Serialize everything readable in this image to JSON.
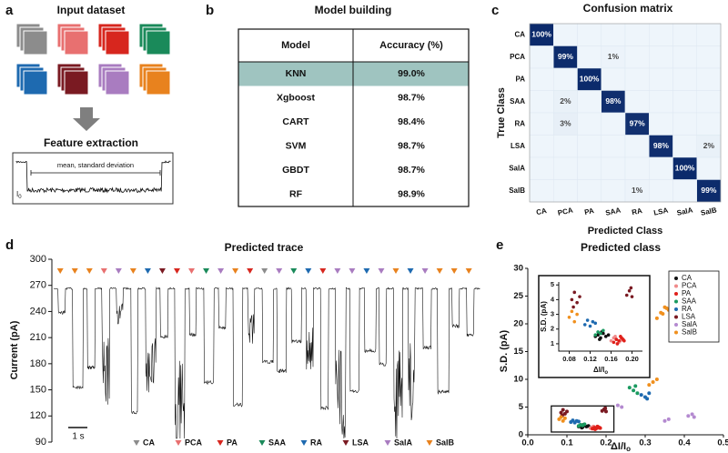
{
  "panel_a": {
    "label": "a",
    "title": "Input  dataset",
    "subtitle": "Feature extraction",
    "annotation": "mean, standard deviation",
    "baseline_label": {
      "text": "I",
      "sub": "0"
    },
    "colors": [
      "#8c8c8c",
      "#e87070",
      "#d7261e",
      "#1a8a5a",
      "#1e6ab0",
      "#7a1a22",
      "#a97cc0",
      "#e8821e"
    ]
  },
  "table": {
    "label": "b",
    "title": "Model building",
    "header": [
      "Model",
      "Accuracy (%)"
    ],
    "rows": [
      [
        "KNN",
        "99.0%"
      ],
      [
        "Xgboost",
        "98.7%"
      ],
      [
        "CART",
        "98.4%"
      ],
      [
        "SVM",
        "98.7%"
      ],
      [
        "GBDT",
        "98.7%"
      ],
      [
        "RF",
        "98.9%"
      ]
    ],
    "highlight_row": 0,
    "highlight_color": "#9fc4c0"
  },
  "chart_data": [
    {
      "type": "heatmap",
      "label": "c",
      "title": "Confusion matrix",
      "xlabel": "Predicted Class",
      "ylabel": "True Class",
      "categories": [
        "CA",
        "PCA",
        "PA",
        "SAA",
        "RA",
        "LSA",
        "SalA",
        "SalB"
      ],
      "low_color": "#eef5fb",
      "high_color": "#0b2a6b",
      "values": [
        [
          100,
          0,
          0,
          0,
          0,
          0,
          0,
          0
        ],
        [
          0,
          99,
          0,
          1,
          0,
          0,
          0,
          0
        ],
        [
          0,
          0,
          100,
          0,
          0,
          0,
          0,
          0
        ],
        [
          0,
          2,
          0,
          98,
          0,
          0,
          0,
          0
        ],
        [
          0,
          3,
          0,
          0,
          97,
          0,
          0,
          0
        ],
        [
          0,
          0,
          0,
          0,
          0,
          98,
          0,
          2
        ],
        [
          0,
          0,
          0,
          0,
          0,
          0,
          100,
          0
        ],
        [
          0,
          0,
          0,
          0,
          1,
          0,
          0,
          99
        ]
      ],
      "value_labels": [
        [
          "100%",
          null,
          null,
          null,
          null,
          null,
          null,
          null
        ],
        [
          null,
          "99%",
          null,
          "1%",
          null,
          null,
          null,
          null
        ],
        [
          null,
          null,
          "100%",
          null,
          null,
          null,
          null,
          null
        ],
        [
          null,
          "2%",
          null,
          "98%",
          null,
          null,
          null,
          null
        ],
        [
          null,
          "3%",
          null,
          null,
          "97%",
          null,
          null,
          null
        ],
        [
          null,
          null,
          null,
          null,
          null,
          "98%",
          null,
          "2%"
        ],
        [
          null,
          null,
          null,
          null,
          null,
          null,
          "100%",
          null
        ],
        [
          null,
          null,
          null,
          null,
          "1%",
          null,
          null,
          "99%"
        ]
      ]
    },
    {
      "type": "trace",
      "label": "d",
      "title": "Predicted trace",
      "ylabel": "Current (pA)",
      "ylim": [
        90,
        300
      ],
      "yticks": [
        90,
        120,
        150,
        180,
        210,
        240,
        270,
        300
      ],
      "scale_bar": "1 s",
      "legend": [
        {
          "name": "CA",
          "color": "#8c8c8c"
        },
        {
          "name": "PCA",
          "color": "#e87070"
        },
        {
          "name": "PA",
          "color": "#d7261e"
        },
        {
          "name": "SAA",
          "color": "#1a8a5a"
        },
        {
          "name": "RA",
          "color": "#1e6ab0"
        },
        {
          "name": "LSA",
          "color": "#7a1a22"
        },
        {
          "name": "SalA",
          "color": "#a97cc0"
        },
        {
          "name": "SalB",
          "color": "#e8821e"
        }
      ],
      "events": [
        "SalB",
        "SalB",
        "SalB",
        "PCA",
        "SalA",
        "SalB",
        "RA",
        "LSA",
        "PA",
        "PCA",
        "SAA",
        "SalA",
        "SalB",
        "PA",
        "CA",
        "SalA",
        "SAA",
        "RA",
        "PA",
        "SalA",
        "SalA",
        "RA",
        "SalA",
        "SalB",
        "RA",
        "SalA",
        "SalB",
        "SalB",
        "SalB"
      ]
    },
    {
      "type": "scatter",
      "label": "e",
      "title": "Predicted class",
      "xlabel": {
        "text": "ΔI/I",
        "sub": "o"
      },
      "ylabel": "S.D. (pA)",
      "xlim": [
        0,
        0.5
      ],
      "ylim": [
        0,
        30
      ],
      "xticks": [
        {
          "value": 0,
          "label": "0.0"
        },
        0.1,
        0.2,
        0.3,
        0.4,
        0.5
      ],
      "yticks": [
        0,
        5,
        10,
        15,
        20,
        25,
        30
      ],
      "legend_position": "upper right",
      "inset": {
        "xlim": [
          0.06,
          0.22
        ],
        "ylim": [
          0.5,
          5.2
        ],
        "xticks": [
          0.08,
          0.12,
          0.16,
          {
            "value": 0.2,
            "label": "0.20"
          }
        ],
        "yticks": [
          1,
          2,
          3,
          4,
          5
        ]
      },
      "series": [
        {
          "name": "CA",
          "color": "#111111",
          "x": [
            0.13,
            0.135,
            0.14,
            0.145,
            0.15,
            0.138,
            0.142,
            0.155
          ],
          "y": [
            1.5,
            1.6,
            1.4,
            1.7,
            1.5,
            1.3,
            1.8,
            1.6
          ]
        },
        {
          "name": "PCA",
          "color": "#f08a8a",
          "x": [
            0.16,
            0.165,
            0.17,
            0.175,
            0.18,
            0.168,
            0.172,
            0.178
          ],
          "y": [
            1.2,
            1.4,
            1.3,
            1.1,
            1.3,
            1.5,
            1.0,
            1.2
          ]
        },
        {
          "name": "PA",
          "color": "#e0201a",
          "x": [
            0.165,
            0.17,
            0.175,
            0.18,
            0.185,
            0.172,
            0.178,
            0.183
          ],
          "y": [
            1.1,
            1.3,
            1.2,
            1.4,
            1.2,
            1.0,
            1.5,
            1.3
          ]
        },
        {
          "name": "SAA",
          "color": "#1a9a60",
          "x": [
            0.13,
            0.135,
            0.14,
            0.145,
            0.26,
            0.27,
            0.28,
            0.275
          ],
          "y": [
            1.6,
            1.8,
            1.7,
            1.9,
            8.5,
            8.0,
            7.5,
            8.8
          ]
        },
        {
          "name": "RA",
          "color": "#1e6ab0",
          "x": [
            0.11,
            0.115,
            0.12,
            0.125,
            0.13,
            0.29,
            0.3,
            0.31,
            0.305
          ],
          "y": [
            2.3,
            2.6,
            2.2,
            2.5,
            2.4,
            7.2,
            6.8,
            7.5,
            6.5
          ]
        },
        {
          "name": "LSA",
          "color": "#7a1a22",
          "x": [
            0.085,
            0.09,
            0.095,
            0.1,
            0.088,
            0.19,
            0.195,
            0.2,
            0.198
          ],
          "y": [
            4.0,
            4.5,
            3.8,
            4.2,
            3.5,
            4.3,
            4.6,
            4.2,
            4.8
          ]
        },
        {
          "name": "SalA",
          "color": "#b48ad0",
          "x": [
            0.23,
            0.24,
            0.35,
            0.36,
            0.41,
            0.42,
            0.425
          ],
          "y": [
            5.3,
            5.0,
            2.5,
            2.8,
            3.4,
            3.7,
            3.2
          ]
        },
        {
          "name": "SalB",
          "color": "#f0901e",
          "x": [
            0.08,
            0.085,
            0.09,
            0.095,
            0.31,
            0.32,
            0.33,
            0.33,
            0.34,
            0.35,
            0.36,
            0.37,
            0.38,
            0.345,
            0.355
          ],
          "y": [
            2.8,
            3.2,
            2.5,
            3.0,
            9.0,
            9.5,
            10.0,
            21,
            22,
            23,
            22.5,
            21.5,
            23.5,
            21.8,
            22.8
          ]
        }
      ]
    }
  ]
}
